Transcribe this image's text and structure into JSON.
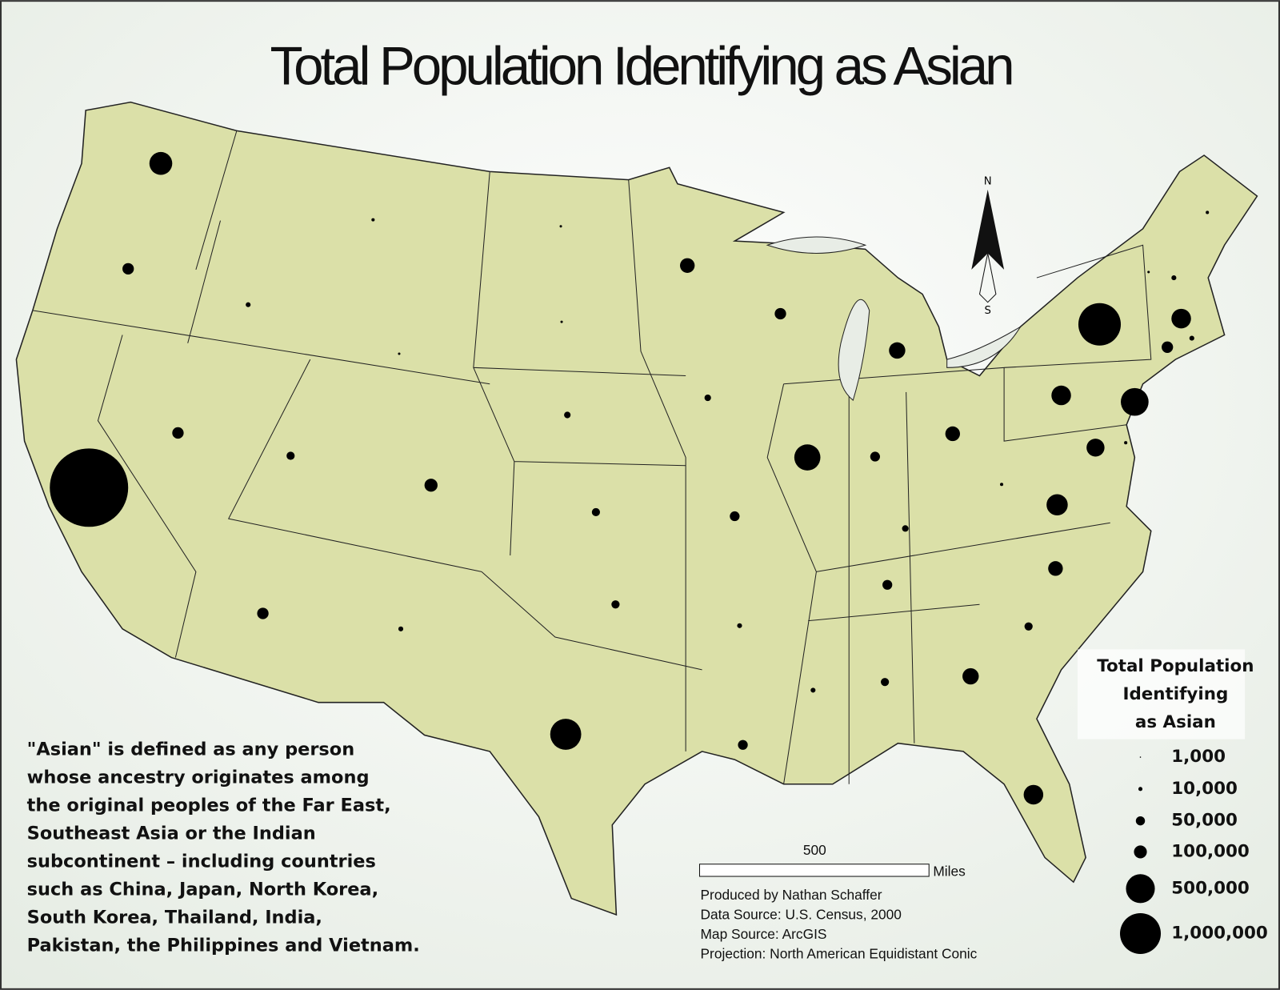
{
  "title": "Total Population Identifying as Asian",
  "compass": {
    "north": "N",
    "south": "S"
  },
  "definition": [
    "\"Asian\" is defined as any person",
    "whose ancestry originates among",
    "the original peoples of the Far East,",
    "Southeast Asia or the Indian",
    "subcontinent – including countries",
    "such as China, Japan, North Korea,",
    "South Korea, Thailand, India,",
    "Pakistan, the Philippines and Vietnam."
  ],
  "legend": {
    "title": [
      "Total Population",
      "Identifying",
      "as Asian"
    ],
    "items": [
      {
        "value": 1000,
        "label": "1,000"
      },
      {
        "value": 10000,
        "label": "10,000"
      },
      {
        "value": 50000,
        "label": "50,000"
      },
      {
        "value": 100000,
        "label": "100,000"
      },
      {
        "value": 500000,
        "label": "500,000"
      },
      {
        "value": 1000000,
        "label": "1,000,000"
      }
    ]
  },
  "scale_bar": {
    "distance": 500,
    "unit": "Miles"
  },
  "credits": [
    "Produced by Nathan Schaffer",
    "Data Source: U.S. Census, 2000",
    "Map Source: ArcGIS",
    "Projection: North American Equidistant Conic"
  ]
}
